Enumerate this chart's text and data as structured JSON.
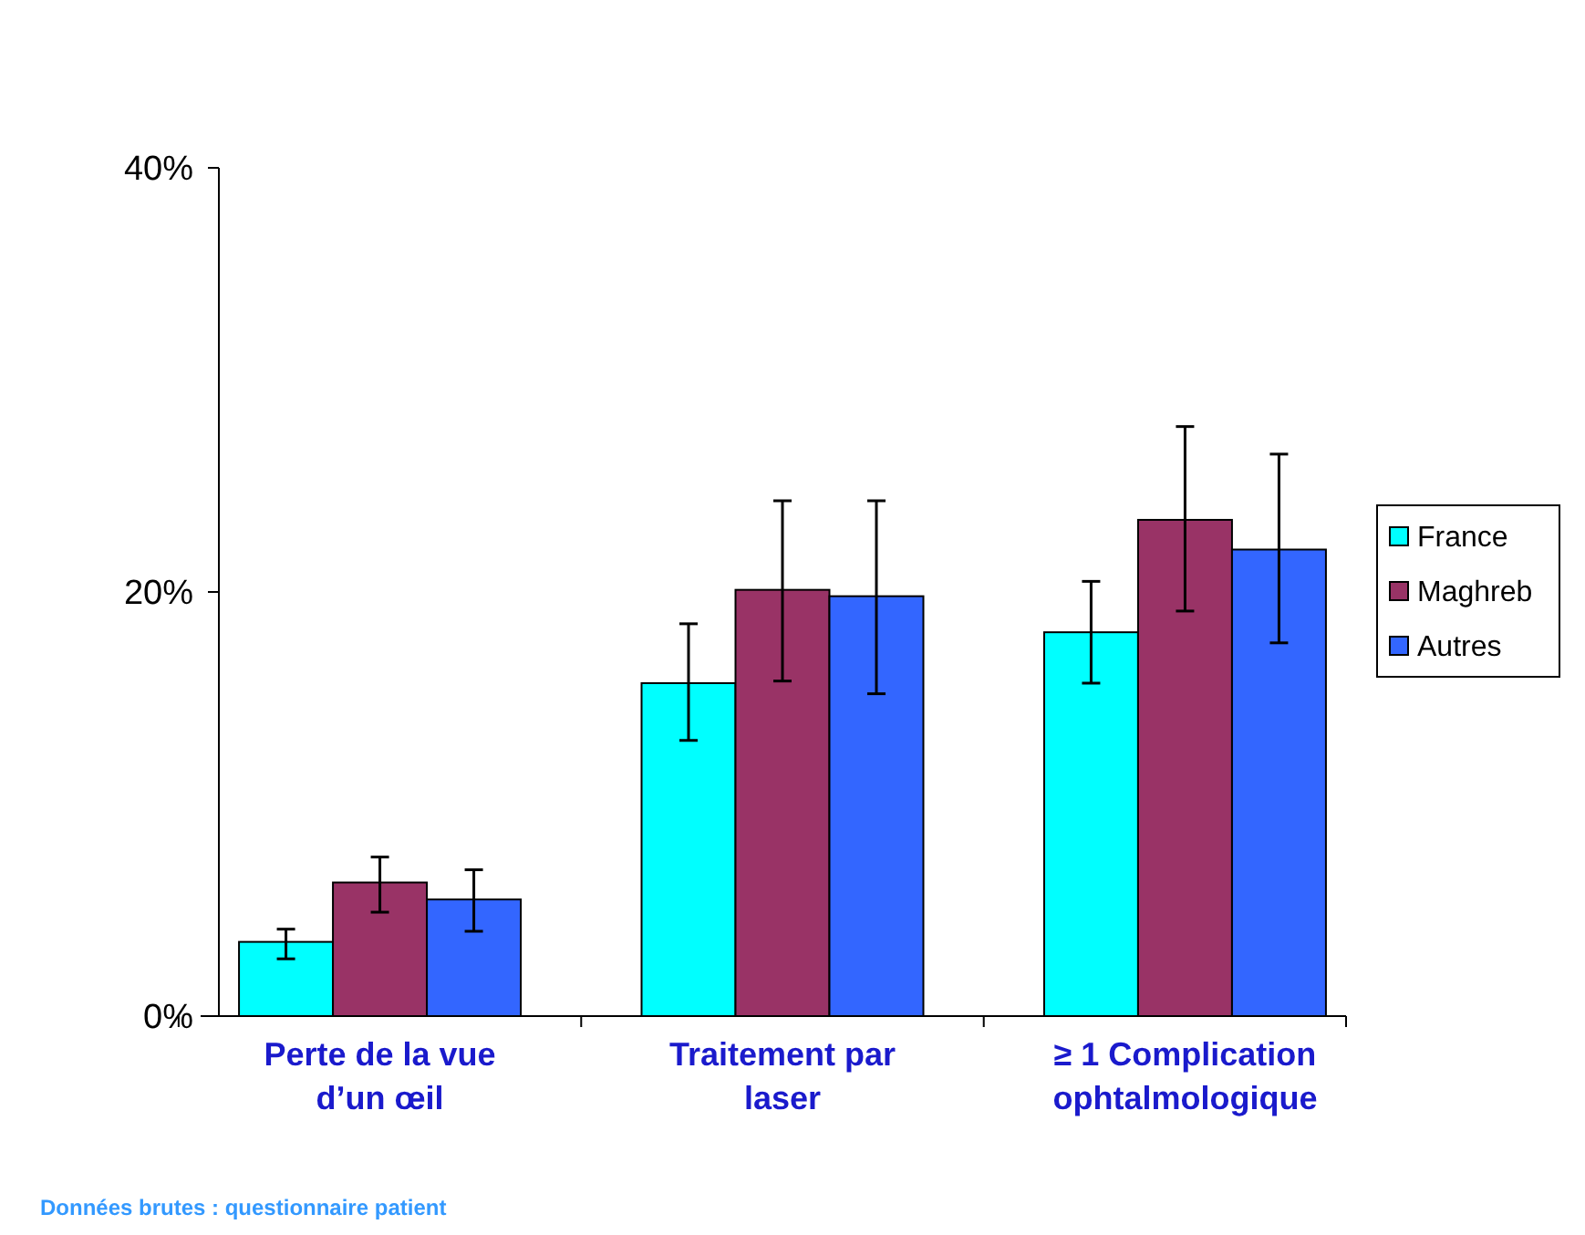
{
  "chart_data": {
    "type": "bar",
    "categories": [
      "Perte de la vue d’un œil",
      "Traitement par laser",
      "≥ 1 Complication ophtalmologique"
    ],
    "series": [
      {
        "name": "France",
        "color": "#00ffff",
        "values": [
          3.5,
          15.7,
          18.1
        ],
        "errors": [
          [
            2.7,
            4.1
          ],
          [
            13.0,
            18.5
          ],
          [
            15.7,
            20.5
          ]
        ]
      },
      {
        "name": "Maghreb",
        "color": "#993366",
        "values": [
          6.3,
          20.1,
          23.4
        ],
        "errors": [
          [
            4.9,
            7.5
          ],
          [
            15.8,
            24.3
          ],
          [
            19.1,
            27.8
          ]
        ]
      },
      {
        "name": "Autres",
        "color": "#3366ff",
        "values": [
          5.5,
          19.8,
          22.0
        ],
        "errors": [
          [
            4.0,
            6.9
          ],
          [
            15.2,
            24.3
          ],
          [
            17.6,
            26.5
          ]
        ]
      }
    ],
    "ylim": [
      0,
      40
    ],
    "yticks": [
      {
        "value": 0,
        "label": "0%"
      },
      {
        "value": 20,
        "label": "20%"
      },
      {
        "value": 40,
        "label": "40%"
      }
    ],
    "grid": false,
    "legend": "right",
    "annotations": [
      "Données brutes : questionnaire patient"
    ]
  }
}
